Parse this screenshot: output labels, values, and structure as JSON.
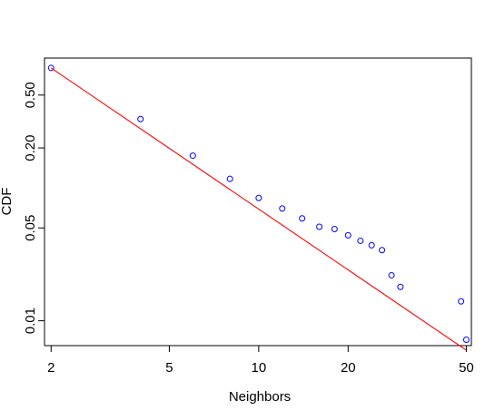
{
  "chart_data": {
    "type": "scatter",
    "title": "",
    "xlabel": "Neighbors",
    "ylabel": "CDF",
    "x_scale": "log",
    "y_scale": "log",
    "xlim": [
      1.9,
      52
    ],
    "ylim": [
      0.0065,
      0.95
    ],
    "grid": false,
    "legend": "none",
    "x_ticks": [
      2,
      5,
      10,
      20,
      50
    ],
    "x_tick_labels": [
      "2",
      "5",
      "10",
      "20",
      "50"
    ],
    "y_ticks": [
      0.01,
      0.05,
      0.2,
      0.5
    ],
    "y_tick_labels": [
      "0.01",
      "0.05",
      "0.20",
      "0.50"
    ],
    "series": [
      {
        "style": "points",
        "color": "#0000ff",
        "points": [
          {
            "x": 2,
            "y": 0.8
          },
          {
            "x": 4,
            "y": 0.33
          },
          {
            "x": 6,
            "y": 0.175
          },
          {
            "x": 8,
            "y": 0.117
          },
          {
            "x": 10,
            "y": 0.084
          },
          {
            "x": 12,
            "y": 0.07
          },
          {
            "x": 14,
            "y": 0.059
          },
          {
            "x": 16,
            "y": 0.051
          },
          {
            "x": 18,
            "y": 0.049
          },
          {
            "x": 20,
            "y": 0.044
          },
          {
            "x": 22,
            "y": 0.04
          },
          {
            "x": 24,
            "y": 0.037
          },
          {
            "x": 26,
            "y": 0.034
          },
          {
            "x": 28,
            "y": 0.022
          },
          {
            "x": 30,
            "y": 0.018
          },
          {
            "x": 48,
            "y": 0.014
          },
          {
            "x": 50,
            "y": 0.0072
          }
        ]
      },
      {
        "style": "line",
        "color": "#ff0000",
        "points": [
          {
            "x": 2,
            "y": 0.8
          },
          {
            "x": 50,
            "y": 0.006
          }
        ]
      }
    ]
  }
}
